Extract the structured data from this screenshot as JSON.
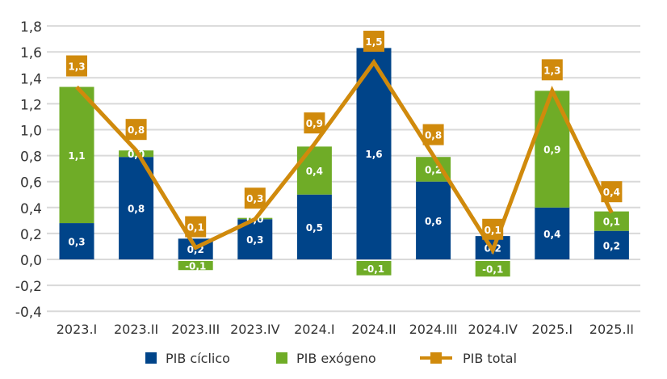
{
  "chart_data": {
    "type": "bar",
    "stacked": true,
    "title": "",
    "xlabel": "",
    "ylabel": "",
    "categories": [
      "2023.I",
      "2023.II",
      "2023.III",
      "2023.IV",
      "2024.I",
      "2024.II",
      "2024.III",
      "2024.IV",
      "2025.I",
      "2025.II"
    ],
    "ylim": [
      -0.4,
      1.8
    ],
    "yticks": [
      -0.4,
      -0.2,
      0.0,
      0.2,
      0.4,
      0.6,
      0.8,
      1.0,
      1.2,
      1.4,
      1.6,
      1.8
    ],
    "ytick_labels": [
      "-0,4",
      "-0,2",
      "0,0",
      "0,2",
      "0,4",
      "0,6",
      "0,8",
      "1,0",
      "1,2",
      "1,4",
      "1,6",
      "1,8"
    ],
    "grid": true,
    "legend_position": "bottom",
    "series": [
      {
        "name": "PIB cíclico",
        "type": "bar",
        "color": "#004489",
        "values": [
          0.28,
          0.79,
          0.16,
          0.31,
          0.5,
          1.63,
          0.6,
          0.18,
          0.4,
          0.22
        ],
        "labels": [
          "0,3",
          "0,8",
          "0,2",
          "0,3",
          "0,5",
          "1,6",
          "0,6",
          "0,2",
          "0,4",
          "0,2"
        ]
      },
      {
        "name": "PIB exógeno",
        "type": "bar",
        "color": "#6fac27",
        "values": [
          1.05,
          0.05,
          -0.07,
          0.01,
          0.37,
          -0.11,
          0.19,
          -0.12,
          0.9,
          0.15
        ],
        "labels": [
          "1,1",
          "0,0",
          "-0,1",
          "0,0",
          "0,4",
          "-0,1",
          "0,2",
          "-0,1",
          "0,9",
          "0,1"
        ]
      },
      {
        "name": "PIB total",
        "type": "line",
        "color": "#d08a0c",
        "values": [
          1.33,
          0.84,
          0.09,
          0.31,
          0.89,
          1.52,
          0.8,
          0.07,
          1.3,
          0.36
        ],
        "labels": [
          "1,3",
          "0,8",
          "0,1",
          "0,3",
          "0,9",
          "1,5",
          "0,8",
          "0,1",
          "1,3",
          "0,4"
        ]
      }
    ]
  }
}
